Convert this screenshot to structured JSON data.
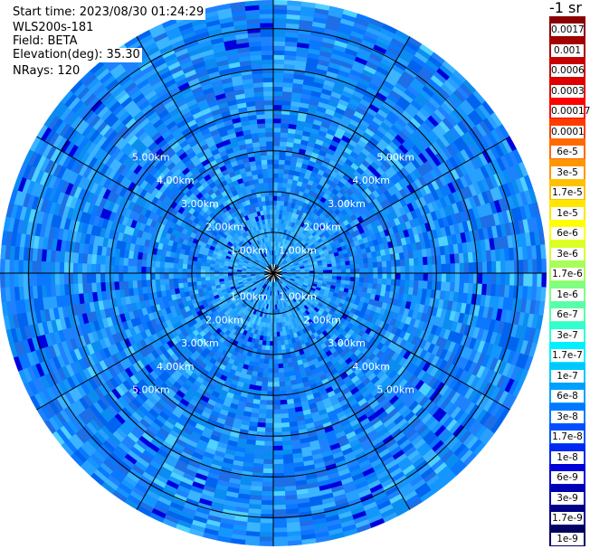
{
  "info": {
    "start_time": "Start time: 2023/08/30 01:24:29",
    "instrument": "WLS200s-181",
    "field": "Field: BETA",
    "elevation": "Elevation(deg): 35.30",
    "nrays": "NRays: 120"
  },
  "legend": {
    "unit": "-1 sr",
    "labels": [
      "0.0017",
      "0.001",
      "0.0006",
      "0.0003",
      "0.00017",
      "0.0001",
      "6e-5",
      "3e-5",
      "1.7e-5",
      "1e-5",
      "6e-6",
      "3e-6",
      "1.7e-6",
      "1e-6",
      "6e-7",
      "3e-7",
      "1.7e-7",
      "1e-7",
      "6e-8",
      "3e-8",
      "1.7e-8",
      "1e-8",
      "6e-9",
      "3e-9",
      "1.7e-9",
      "1e-9"
    ],
    "colors": [
      "#8b0000",
      "#a50000",
      "#c80000",
      "#e00000",
      "#ff0000",
      "#ff3c00",
      "#ff6a00",
      "#ff9600",
      "#ffc000",
      "#ffe600",
      "#ffff00",
      "#d8ff28",
      "#a8ff58",
      "#80ff80",
      "#58ffa8",
      "#30ffd0",
      "#00f0ff",
      "#00c8ff",
      "#00a0ff",
      "#0078ff",
      "#0050ff",
      "#0028f0",
      "#0000d8",
      "#0000b0",
      "#000088",
      "#000060"
    ]
  },
  "chart_data": {
    "type": "heatmap",
    "projection": "polar PPI",
    "field": "BETA",
    "colorscale": "log",
    "range_ring_labels_km": [
      "1.00km",
      "2.00km",
      "3.00km",
      "4.00km",
      "5.00km"
    ],
    "range_rings_km": [
      1,
      2,
      3,
      4,
      5,
      6
    ],
    "max_range_km": 6.7,
    "nrays": 120,
    "spoke_azimuths_deg": [
      0,
      30,
      60,
      90,
      120,
      150,
      180,
      210,
      240,
      270,
      300,
      330
    ],
    "dominant_value_range": [
      "3e-8",
      "1e-8"
    ],
    "near_center_value": "1.7e-8"
  }
}
